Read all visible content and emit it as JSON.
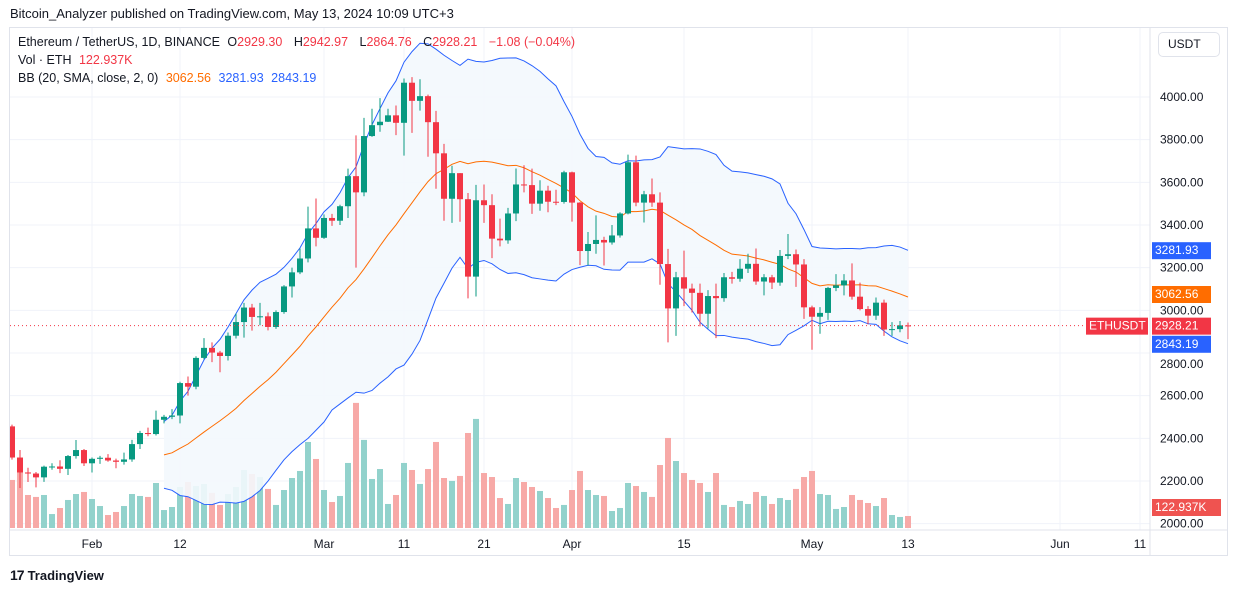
{
  "header": {
    "published": "Bitcoin_Analyzer published on TradingView.com, May 13, 2024 10:09 UTC+3"
  },
  "legend": {
    "symbol": "Ethereum / TetherUS, 1D, BINANCE",
    "o_label": "O",
    "o": "2929.30",
    "h_label": "H",
    "h": "2942.97",
    "l_label": "L",
    "l": "2864.76",
    "c_label": "C",
    "c": "2928.21",
    "change": "−1.08 (−0.04%)",
    "vol_label": "Vol · ETH",
    "vol": "122.937K",
    "bb_label": "BB (20, SMA, close, 2, 0)",
    "bb_basis": "3062.56",
    "bb_upper": "3281.93",
    "bb_lower": "2843.19"
  },
  "currency_button": "USDT",
  "price_tags": {
    "upper": "3281.93",
    "basis": "3062.56",
    "symbol": "ETHUSDT",
    "last": "2928.21",
    "lower": "2843.19",
    "volume": "122.937K"
  },
  "colors": {
    "up": "#089981",
    "down": "#f23645",
    "vol_up": "#92d2cc",
    "vol_down": "#f7a9a7",
    "bb_band": "#2962ff",
    "bb_basis": "#ff6d00",
    "bb_fill": "#f3f8fd"
  },
  "logo": "TradingView",
  "chart_data": {
    "type": "candlestick",
    "title": "Ethereum / TetherUS, 1D, BINANCE",
    "ylim": [
      2000,
      4150
    ],
    "y_ticks": [
      "4000.00",
      "3800.00",
      "3600.00",
      "3400.00",
      "3200.00",
      "3000.00",
      "2800.00",
      "2600.00",
      "2400.00",
      "2200.00",
      "2000.00"
    ],
    "x_ticks": [
      {
        "label": "Feb",
        "date": "2024-02-01"
      },
      {
        "label": "12",
        "date": "2024-02-12"
      },
      {
        "label": "Mar",
        "date": "2024-03-01"
      },
      {
        "label": "11",
        "date": "2024-03-11"
      },
      {
        "label": "21",
        "date": "2024-03-21"
      },
      {
        "label": "Apr",
        "date": "2024-04-01"
      },
      {
        "label": "15",
        "date": "2024-04-15"
      },
      {
        "label": "May",
        "date": "2024-05-01"
      },
      {
        "label": "13",
        "date": "2024-05-13"
      },
      {
        "label": "Jun",
        "date": "2024-06-01"
      },
      {
        "label": "11",
        "date": "2024-06-11"
      }
    ],
    "grid": true,
    "indicator": "Bollinger Bands (20, SMA, close, 2)",
    "columns": [
      "date",
      "open",
      "high",
      "low",
      "close",
      "volume_k"
    ],
    "candles": [
      [
        "2024-01-22",
        2456,
        2464,
        2300,
        2310,
        492
      ],
      [
        "2024-01-23",
        2310,
        2345,
        2167,
        2240,
        656
      ],
      [
        "2024-01-24",
        2240,
        2262,
        2195,
        2235,
        338
      ],
      [
        "2024-01-25",
        2235,
        2242,
        2170,
        2217,
        318
      ],
      [
        "2024-01-26",
        2217,
        2272,
        2196,
        2267,
        338
      ],
      [
        "2024-01-27",
        2267,
        2283,
        2253,
        2268,
        143
      ],
      [
        "2024-01-28",
        2268,
        2297,
        2237,
        2257,
        205
      ],
      [
        "2024-01-29",
        2257,
        2322,
        2228,
        2317,
        287
      ],
      [
        "2024-01-30",
        2317,
        2392,
        2305,
        2345,
        348
      ],
      [
        "2024-01-31",
        2345,
        2350,
        2270,
        2283,
        369
      ],
      [
        "2024-02-01",
        2283,
        2310,
        2240,
        2304,
        297
      ],
      [
        "2024-02-02",
        2304,
        2318,
        2280,
        2309,
        225
      ],
      [
        "2024-02-03",
        2309,
        2326,
        2290,
        2296,
        133
      ],
      [
        "2024-02-04",
        2296,
        2305,
        2260,
        2290,
        164
      ],
      [
        "2024-02-05",
        2290,
        2333,
        2277,
        2301,
        225
      ],
      [
        "2024-02-06",
        2301,
        2393,
        2290,
        2373,
        348
      ],
      [
        "2024-02-07",
        2373,
        2435,
        2350,
        2425,
        328
      ],
      [
        "2024-02-08",
        2425,
        2450,
        2410,
        2420,
        318
      ],
      [
        "2024-02-09",
        2420,
        2530,
        2413,
        2487,
        461
      ],
      [
        "2024-02-10",
        2487,
        2510,
        2470,
        2501,
        184
      ],
      [
        "2024-02-11",
        2501,
        2537,
        2490,
        2507,
        215
      ],
      [
        "2024-02-12",
        2507,
        2665,
        2470,
        2659,
        420
      ],
      [
        "2024-02-13",
        2659,
        2690,
        2600,
        2642,
        471
      ],
      [
        "2024-02-14",
        2642,
        2785,
        2630,
        2777,
        430
      ],
      [
        "2024-02-15",
        2777,
        2870,
        2770,
        2824,
        451
      ],
      [
        "2024-02-16",
        2824,
        2850,
        2757,
        2802,
        359
      ],
      [
        "2024-02-17",
        2802,
        2810,
        2710,
        2786,
        236
      ],
      [
        "2024-02-18",
        2786,
        2896,
        2765,
        2881,
        348
      ],
      [
        "2024-02-19",
        2881,
        2985,
        2868,
        2945,
        420
      ],
      [
        "2024-02-20",
        2945,
        3035,
        2872,
        3013,
        594
      ],
      [
        "2024-02-21",
        3013,
        3030,
        2905,
        2969,
        553
      ],
      [
        "2024-02-22",
        2969,
        3035,
        2930,
        2972,
        522
      ],
      [
        "2024-02-23",
        2972,
        2990,
        2906,
        2922,
        400
      ],
      [
        "2024-02-24",
        2922,
        3000,
        2913,
        2992,
        236
      ],
      [
        "2024-02-25",
        2992,
        3118,
        2984,
        3112,
        389
      ],
      [
        "2024-02-26",
        3112,
        3200,
        3060,
        3178,
        512
      ],
      [
        "2024-02-27",
        3178,
        3290,
        3170,
        3243,
        584
      ],
      [
        "2024-02-28",
        3243,
        3486,
        3225,
        3384,
        881
      ],
      [
        "2024-02-29",
        3384,
        3524,
        3300,
        3340,
        707
      ],
      [
        "2024-03-01",
        3340,
        3450,
        3335,
        3433,
        389
      ],
      [
        "2024-03-02",
        3433,
        3452,
        3396,
        3420,
        266
      ],
      [
        "2024-03-03",
        3420,
        3495,
        3400,
        3488,
        328
      ],
      [
        "2024-03-04",
        3488,
        3664,
        3433,
        3629,
        666
      ],
      [
        "2024-03-05",
        3629,
        3820,
        3200,
        3553,
        1281
      ],
      [
        "2024-03-06",
        3553,
        3902,
        3535,
        3817,
        902
      ],
      [
        "2024-03-07",
        3817,
        3945,
        3813,
        3868,
        502
      ],
      [
        "2024-03-08",
        3868,
        3995,
        3837,
        3884,
        604
      ],
      [
        "2024-03-09",
        3884,
        3945,
        3883,
        3914,
        246
      ],
      [
        "2024-03-10",
        3914,
        3960,
        3821,
        3879,
        338
      ],
      [
        "2024-03-11",
        3879,
        4087,
        3725,
        4067,
        666
      ],
      [
        "2024-03-12",
        4067,
        4093,
        3832,
        3982,
        594
      ],
      [
        "2024-03-13",
        3982,
        4083,
        3936,
        4004,
        451
      ],
      [
        "2024-03-14",
        4004,
        4011,
        3720,
        3882,
        604
      ],
      [
        "2024-03-15",
        3882,
        3935,
        3570,
        3736,
        881
      ],
      [
        "2024-03-16",
        3736,
        3780,
        3420,
        3523,
        512
      ],
      [
        "2024-03-17",
        3523,
        3678,
        3410,
        3643,
        482
      ],
      [
        "2024-03-18",
        3643,
        3643,
        3415,
        3521,
        533
      ],
      [
        "2024-03-19",
        3521,
        3550,
        3056,
        3158,
        973
      ],
      [
        "2024-03-20",
        3158,
        3588,
        3065,
        3516,
        1117
      ],
      [
        "2024-03-21",
        3516,
        3590,
        3410,
        3493,
        563
      ],
      [
        "2024-03-22",
        3493,
        3544,
        3245,
        3336,
        522
      ],
      [
        "2024-03-23",
        3336,
        3430,
        3300,
        3328,
        307
      ],
      [
        "2024-03-24",
        3328,
        3480,
        3312,
        3454,
        246
      ],
      [
        "2024-03-25",
        3454,
        3665,
        3418,
        3590,
        512
      ],
      [
        "2024-03-26",
        3590,
        3680,
        3553,
        3587,
        471
      ],
      [
        "2024-03-27",
        3587,
        3664,
        3452,
        3500,
        420
      ],
      [
        "2024-03-28",
        3500,
        3610,
        3467,
        3561,
        379
      ],
      [
        "2024-03-29",
        3561,
        3584,
        3460,
        3509,
        307
      ],
      [
        "2024-03-30",
        3509,
        3565,
        3493,
        3508,
        205
      ],
      [
        "2024-03-31",
        3508,
        3654,
        3500,
        3647,
        236
      ],
      [
        "2024-04-01",
        3647,
        3650,
        3416,
        3505,
        389
      ],
      [
        "2024-04-02",
        3505,
        3507,
        3212,
        3278,
        584
      ],
      [
        "2024-04-03",
        3278,
        3367,
        3210,
        3311,
        389
      ],
      [
        "2024-04-04",
        3311,
        3445,
        3265,
        3330,
        338
      ],
      [
        "2024-04-05",
        3330,
        3345,
        3210,
        3318,
        328
      ],
      [
        "2024-04-06",
        3318,
        3400,
        3308,
        3351,
        174
      ],
      [
        "2024-04-07",
        3351,
        3460,
        3341,
        3454,
        205
      ],
      [
        "2024-04-08",
        3454,
        3730,
        3450,
        3694,
        461
      ],
      [
        "2024-04-09",
        3694,
        3725,
        3488,
        3505,
        430
      ],
      [
        "2024-04-10",
        3505,
        3560,
        3412,
        3544,
        369
      ],
      [
        "2024-04-11",
        3544,
        3618,
        3485,
        3505,
        318
      ],
      [
        "2024-04-12",
        3505,
        3553,
        3120,
        3217,
        645
      ],
      [
        "2024-04-13",
        3217,
        3288,
        2850,
        3009,
        922
      ],
      [
        "2024-04-14",
        3009,
        3180,
        2880,
        3155,
        686
      ],
      [
        "2024-04-15",
        3155,
        3280,
        3020,
        3102,
        563
      ],
      [
        "2024-04-16",
        3102,
        3125,
        2990,
        3082,
        492
      ],
      [
        "2024-04-17",
        3082,
        3125,
        2925,
        2984,
        461
      ],
      [
        "2024-04-18",
        2984,
        3095,
        2915,
        3067,
        369
      ],
      [
        "2024-04-19",
        3067,
        3125,
        2870,
        3057,
        563
      ],
      [
        "2024-04-20",
        3057,
        3175,
        3040,
        3155,
        236
      ],
      [
        "2024-04-21",
        3155,
        3180,
        3125,
        3148,
        215
      ],
      [
        "2024-04-22",
        3148,
        3240,
        3134,
        3195,
        277
      ],
      [
        "2024-04-23",
        3195,
        3265,
        3175,
        3218,
        246
      ],
      [
        "2024-04-24",
        3218,
        3290,
        3120,
        3135,
        369
      ],
      [
        "2024-04-25",
        3135,
        3170,
        3070,
        3155,
        328
      ],
      [
        "2024-04-26",
        3155,
        3166,
        3100,
        3130,
        246
      ],
      [
        "2024-04-27",
        3130,
        3283,
        3115,
        3255,
        307
      ],
      [
        "2024-04-28",
        3255,
        3358,
        3240,
        3263,
        287
      ],
      [
        "2024-04-29",
        3263,
        3285,
        3110,
        3215,
        400
      ],
      [
        "2024-04-30",
        3215,
        3240,
        2960,
        3014,
        522
      ],
      [
        "2024-05-01",
        3014,
        3022,
        2815,
        2970,
        584
      ],
      [
        "2024-05-02",
        2970,
        3015,
        2890,
        2988,
        348
      ],
      [
        "2024-05-03",
        2988,
        3110,
        2955,
        3105,
        338
      ],
      [
        "2024-05-04",
        3105,
        3170,
        3090,
        3117,
        195
      ],
      [
        "2024-05-05",
        3117,
        3170,
        3070,
        3140,
        215
      ],
      [
        "2024-05-06",
        3140,
        3220,
        3050,
        3064,
        338
      ],
      [
        "2024-05-07",
        3064,
        3130,
        3000,
        3006,
        287
      ],
      [
        "2024-05-08",
        3006,
        3020,
        2935,
        2975,
        256
      ],
      [
        "2024-05-09",
        2975,
        3060,
        2955,
        3036,
        225
      ],
      [
        "2024-05-10",
        3036,
        3050,
        2880,
        2910,
        307
      ],
      [
        "2024-05-11",
        2910,
        2945,
        2880,
        2912,
        133
      ],
      [
        "2024-05-12",
        2912,
        2950,
        2897,
        2929.3,
        113
      ],
      [
        "2024-05-13",
        2929.3,
        2942.97,
        2864.76,
        2928.21,
        122.937
      ]
    ]
  }
}
